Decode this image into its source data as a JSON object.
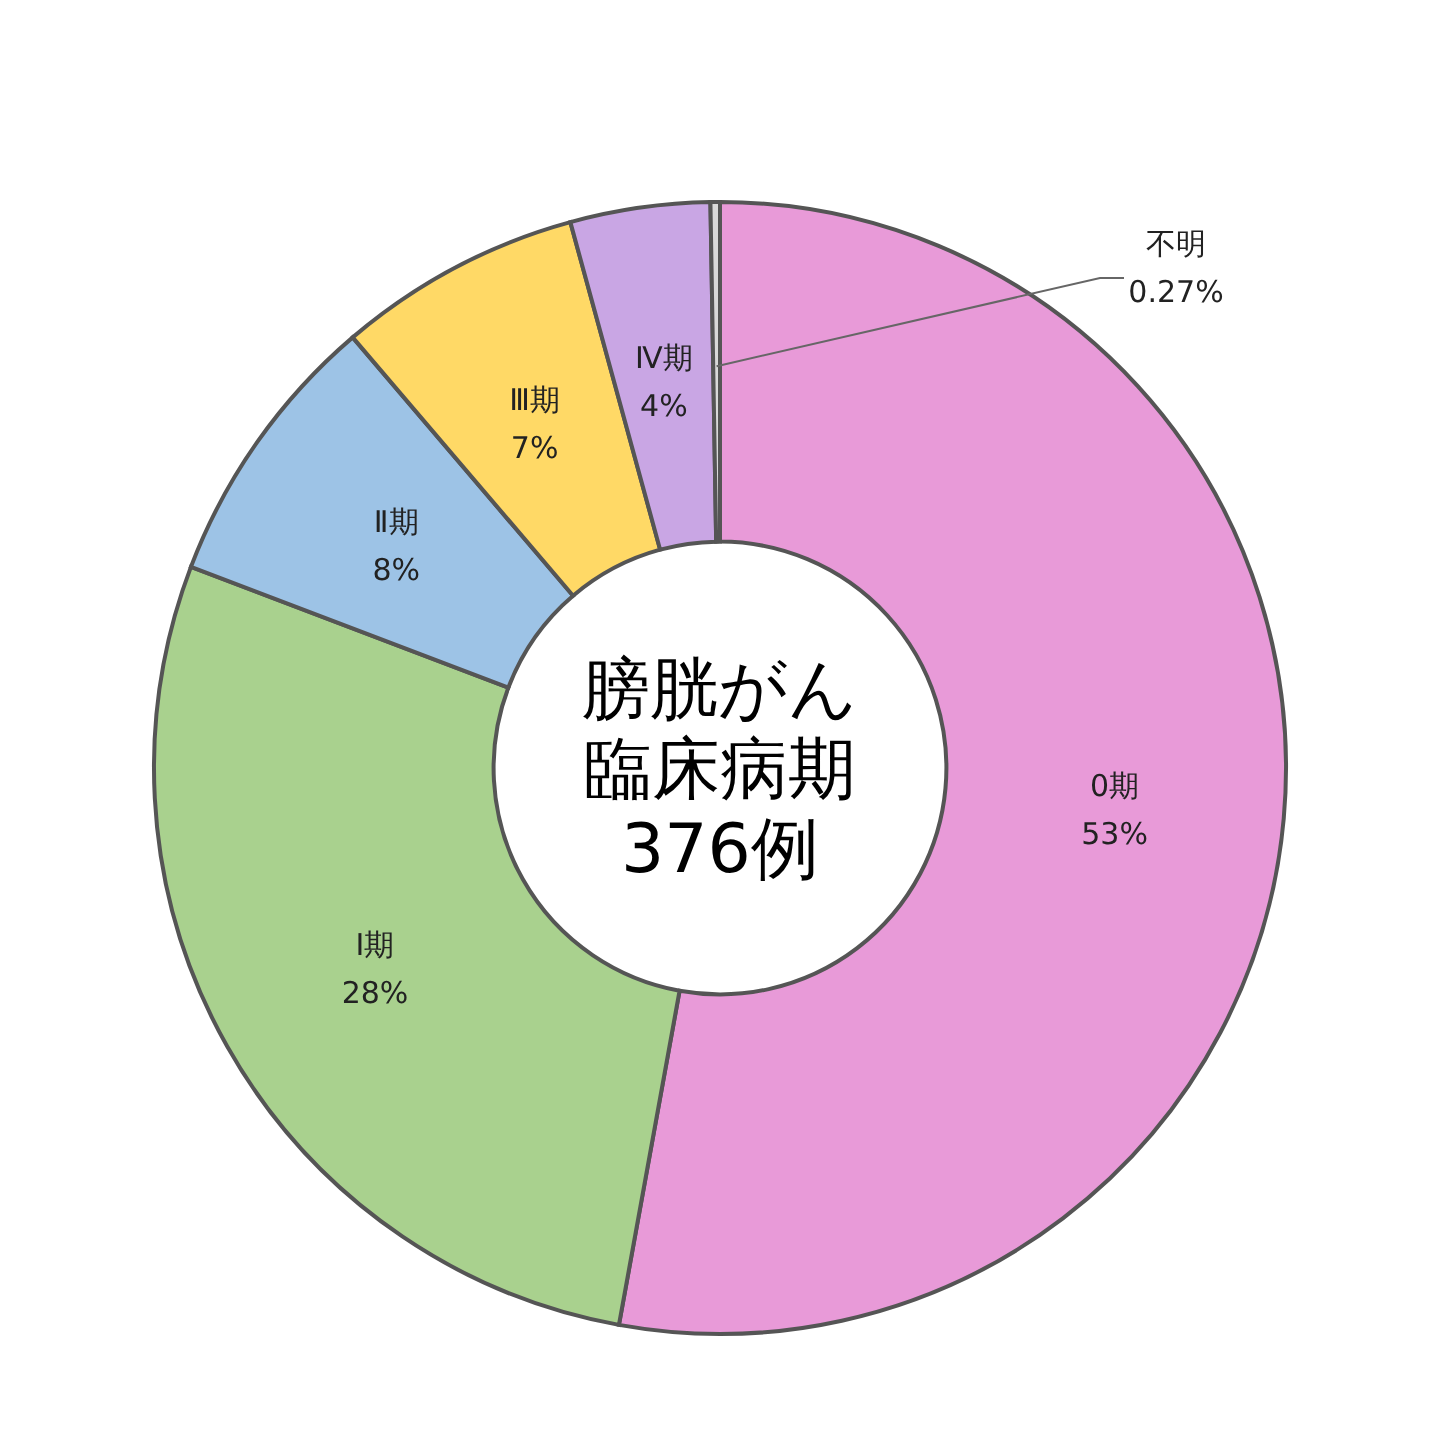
{
  "chart_data": {
    "type": "donut",
    "title": "膀胱がん臨床病期",
    "subtitle": "376例",
    "categories": [
      "0期",
      "Ⅰ期",
      "Ⅱ期",
      "Ⅲ期",
      "Ⅳ期",
      "不明"
    ],
    "values": [
      53,
      28,
      8,
      7,
      4,
      0.27
    ],
    "colors": [
      "#e89ad8",
      "#a9d18e",
      "#9dc3e6",
      "#ffd966",
      "#c9a6e4",
      "#d9d9d9"
    ],
    "value_labels": [
      "53%",
      "28%",
      "8%",
      "7%",
      "4%",
      "0.27%"
    ]
  }
}
